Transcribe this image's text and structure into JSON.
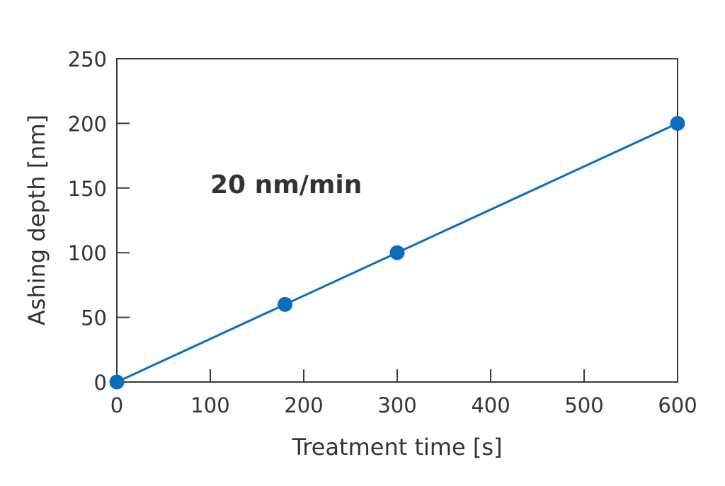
{
  "chart_data": {
    "type": "line",
    "title": "",
    "xlabel": "Treatment time [s]",
    "ylabel": "Ashing depth [nm]",
    "xlim": [
      0,
      600
    ],
    "ylim": [
      0,
      250
    ],
    "xticks": [
      0,
      100,
      200,
      300,
      400,
      500,
      600
    ],
    "yticks": [
      0,
      50,
      100,
      150,
      200,
      250
    ],
    "grid": false,
    "series": [
      {
        "name": "Ashing depth",
        "x": [
          0,
          180,
          300,
          600
        ],
        "y": [
          0,
          60,
          100,
          200
        ],
        "color": "#0a6ebd"
      }
    ],
    "annotations": [
      {
        "text": "20 nm/min",
        "x": 100,
        "y": 146
      }
    ]
  }
}
